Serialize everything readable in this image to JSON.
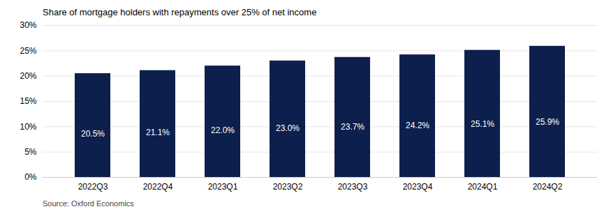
{
  "chart_data": {
    "type": "bar",
    "title": "Share of mortgage holders with repayments over 25% of net income",
    "source": "Source: Oxford Economics",
    "categories": [
      "2022Q3",
      "2022Q4",
      "2023Q1",
      "2023Q2",
      "2023Q3",
      "2023Q4",
      "2024Q1",
      "2024Q2"
    ],
    "values": [
      20.5,
      21.1,
      22.0,
      23.0,
      23.7,
      24.2,
      25.1,
      25.9
    ],
    "value_labels": [
      "20.5%",
      "21.1%",
      "22.0%",
      "23.0%",
      "23.7%",
      "24.2%",
      "25.1%",
      "25.9%"
    ],
    "data_labels": true,
    "color": "#0d1f4c",
    "ylim": [
      0,
      30
    ],
    "yticks": [
      {
        "value": 0,
        "label": "0%"
      },
      {
        "value": 5,
        "label": "5%"
      },
      {
        "value": 10,
        "label": "10%"
      },
      {
        "value": 15,
        "label": "15%"
      },
      {
        "value": 20,
        "label": "20%"
      },
      {
        "value": 25,
        "label": "25%"
      },
      {
        "value": 30,
        "label": "30%"
      }
    ],
    "grid": true
  }
}
